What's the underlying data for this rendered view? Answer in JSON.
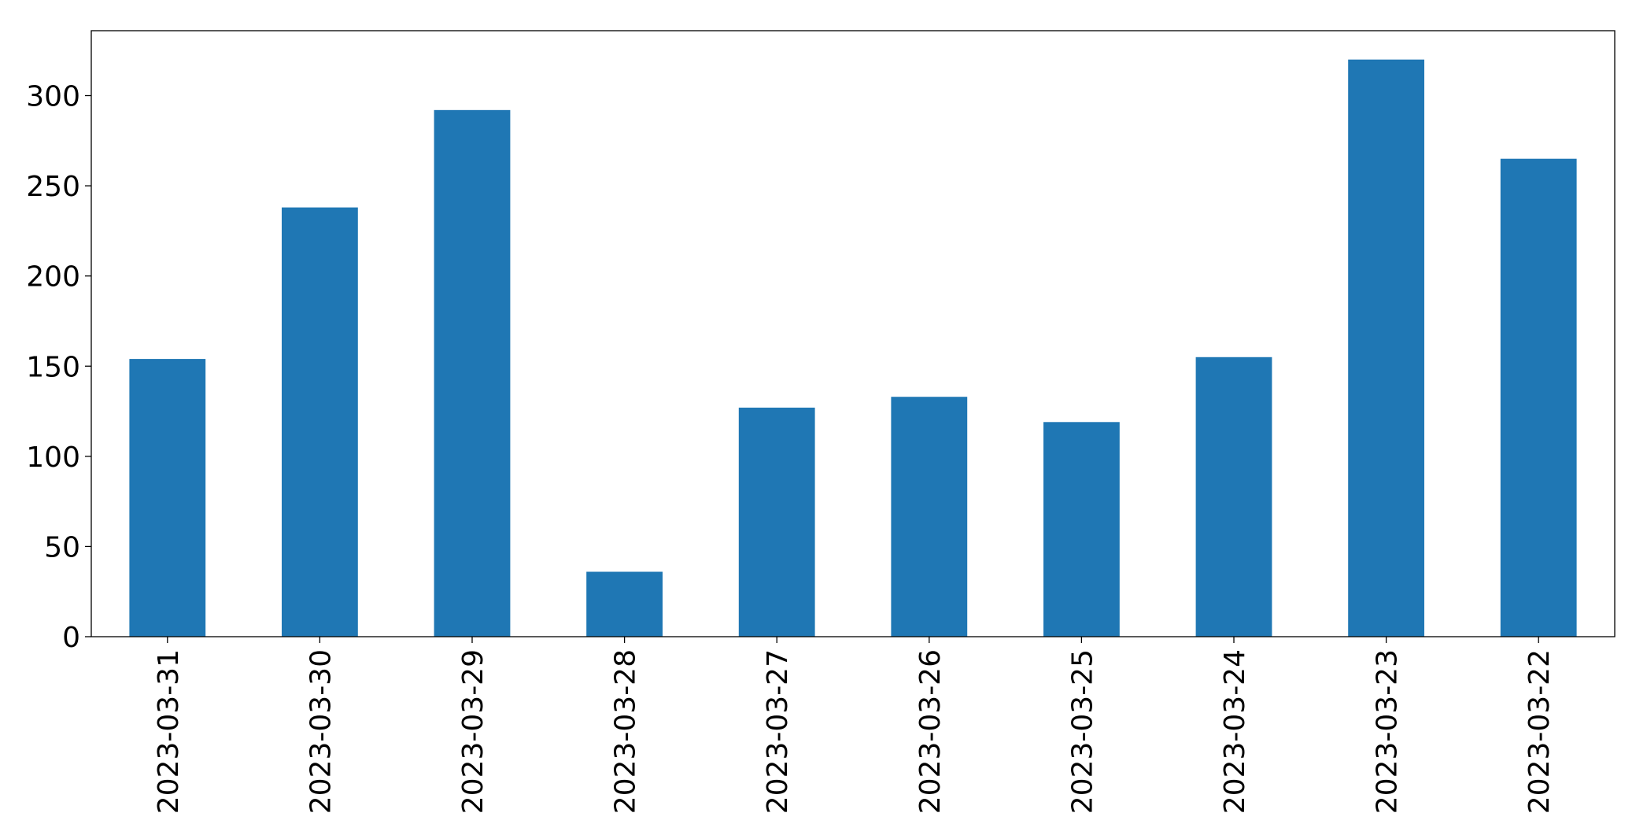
{
  "chart_data": {
    "type": "bar",
    "categories": [
      "2023-03-31",
      "2023-03-30",
      "2023-03-29",
      "2023-03-28",
      "2023-03-27",
      "2023-03-26",
      "2023-03-25",
      "2023-03-24",
      "2023-03-23",
      "2023-03-22"
    ],
    "values": [
      154,
      238,
      292,
      36,
      127,
      133,
      119,
      155,
      320,
      265
    ],
    "color": "#1f77b4",
    "ylim": [
      0,
      336
    ],
    "yticks": [
      0,
      50,
      100,
      150,
      200,
      250,
      300
    ],
    "grid": false
  }
}
